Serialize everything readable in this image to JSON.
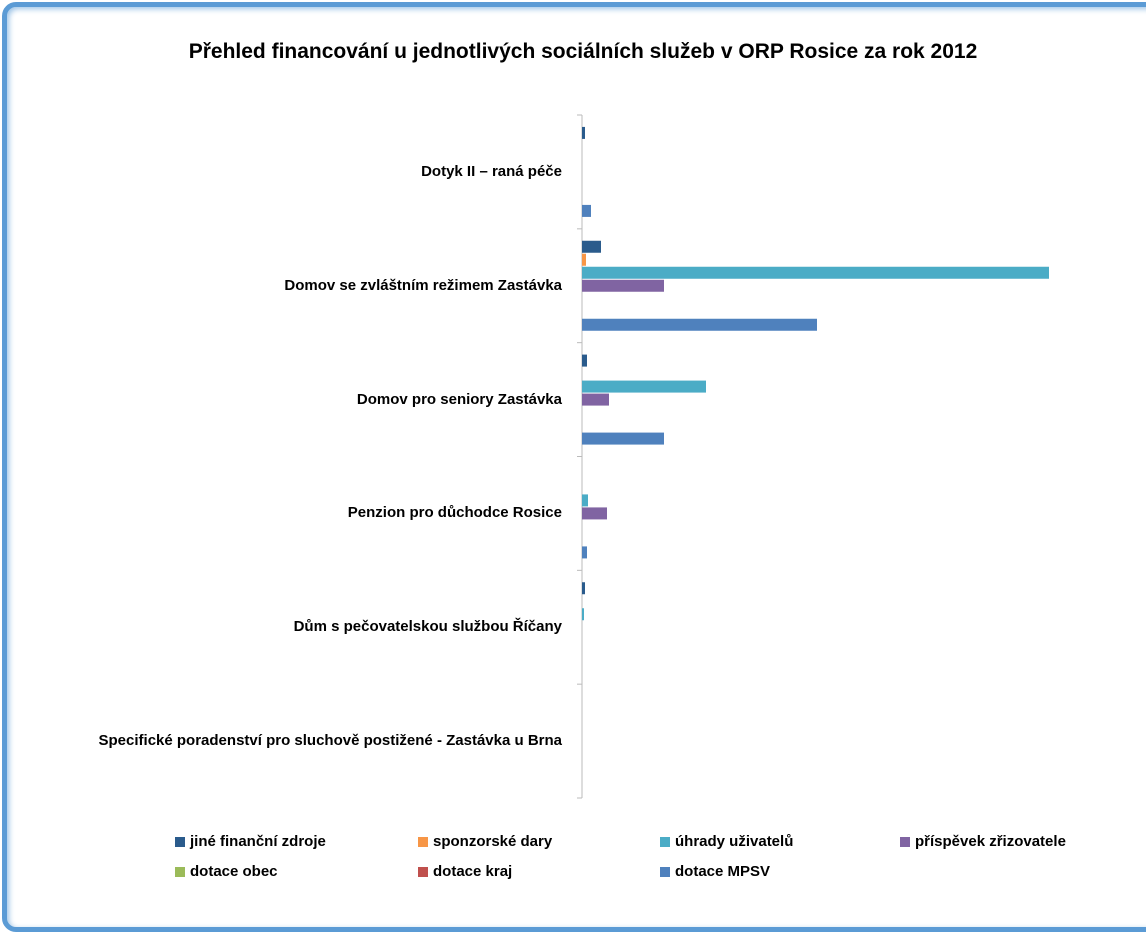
{
  "chart_data": {
    "type": "bar",
    "orientation": "horizontal",
    "title": "Přehled financování u jednotlivých sociálních služeb v ORP Rosice za rok 2012",
    "categories": [
      "Dotyk II – raná péče",
      "Domov se zvláštním režimem Zastávka",
      "Domov pro seniory Zastávka",
      "Penzion pro důchodce Rosice",
      "Dům s pečovatelskou službou Říčany",
      "Specifické poradenství pro sluchově postižené - Zastávka u Brna"
    ],
    "series": [
      {
        "name": "jiné finanční zdroje",
        "color": "#2a5b8c",
        "values": [
          3,
          19,
          5,
          0,
          3,
          0
        ]
      },
      {
        "name": "sponzorské dary",
        "color": "#f79646",
        "values": [
          0,
          4,
          0,
          0,
          0,
          0
        ]
      },
      {
        "name": "úhrady uživatelů",
        "color": "#4bacc6",
        "values": [
          0,
          467,
          124,
          6,
          2,
          0
        ]
      },
      {
        "name": "příspěvek zřizovatele",
        "color": "#8064a2",
        "values": [
          0,
          82,
          27,
          25,
          0,
          0
        ]
      },
      {
        "name": "dotace obec",
        "color": "#9bbb59",
        "values": [
          0,
          0,
          0,
          0,
          0,
          0
        ]
      },
      {
        "name": "dotace kraj",
        "color": "#c0504d",
        "values": [
          0,
          0,
          0,
          0,
          0,
          0
        ]
      },
      {
        "name": "dotace MPSV",
        "color": "#4f81bd",
        "values": [
          9,
          235,
          82,
          5,
          0,
          0
        ]
      }
    ],
    "xlim": [
      0,
      500
    ]
  }
}
